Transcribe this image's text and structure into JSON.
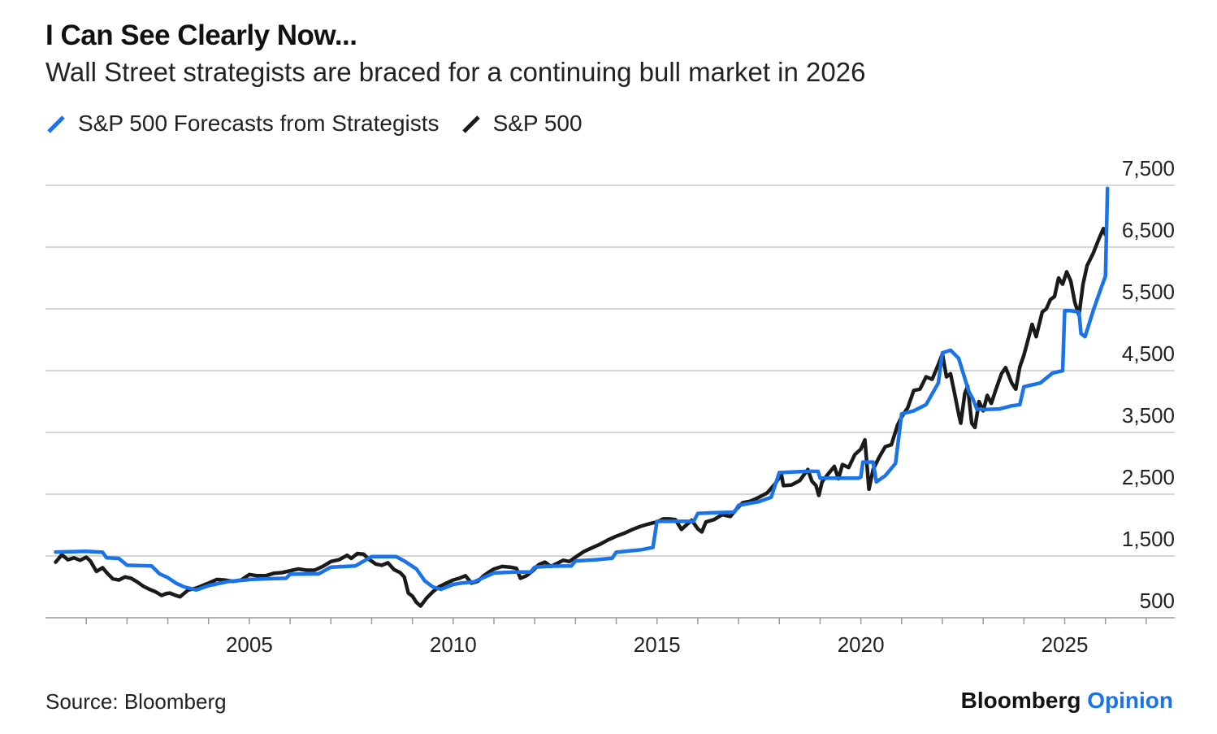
{
  "header": {
    "title": "I Can See Clearly Now...",
    "subtitle": "Wall Street strategists are braced for a continuing bull market in 2026"
  },
  "footer": {
    "source": "Source: Bloomberg",
    "brand_primary": "Bloomberg",
    "brand_secondary": "Opinion"
  },
  "colors": {
    "forecast": "#1a73e8",
    "sp500": "#1a1a1a",
    "grid": "#c8c8c8",
    "brand_accent": "#1a73e8"
  },
  "chart_data": {
    "type": "line",
    "title": "I Can See Clearly Now...",
    "subtitle": "Wall Street strategists are braced for a continuing bull market in 2026",
    "grid": true,
    "legend_position": "top-left",
    "y_axis_position": "right",
    "xlim": [
      2000.0,
      2027.7
    ],
    "ylim": [
      500,
      7500
    ],
    "x_ticks": [
      2005,
      2010,
      2015,
      2020,
      2025
    ],
    "x_tick_labels": [
      "2005",
      "2010",
      "2015",
      "2020",
      "2025"
    ],
    "y_ticks": [
      7500,
      6500,
      5500,
      4500,
      3500,
      2500,
      1500,
      500
    ],
    "y_tick_labels": [
      "7,500",
      "6,500",
      "5,500",
      "4,500",
      "3,500",
      "2,500",
      "1,500",
      "500"
    ],
    "series": [
      {
        "name": "S&P 500 Forecasts from Strategists",
        "color": "#1a73e8",
        "points": [
          [
            2000.25,
            1565
          ],
          [
            2000.6,
            1570
          ],
          [
            2001.0,
            1575
          ],
          [
            2001.4,
            1560
          ],
          [
            2001.5,
            1470
          ],
          [
            2001.8,
            1460
          ],
          [
            2002.0,
            1350
          ],
          [
            2002.6,
            1340
          ],
          [
            2002.8,
            1210
          ],
          [
            2003.0,
            1150
          ],
          [
            2003.2,
            1060
          ],
          [
            2003.4,
            1000
          ],
          [
            2003.7,
            950
          ],
          [
            2004.0,
            1020
          ],
          [
            2004.5,
            1090
          ],
          [
            2004.9,
            1110
          ],
          [
            2005.0,
            1120
          ],
          [
            2005.4,
            1130
          ],
          [
            2005.9,
            1140
          ],
          [
            2006.0,
            1205
          ],
          [
            2006.7,
            1210
          ],
          [
            2007.0,
            1320
          ],
          [
            2007.6,
            1340
          ],
          [
            2008.0,
            1490
          ],
          [
            2008.6,
            1490
          ],
          [
            2008.8,
            1420
          ],
          [
            2009.1,
            1290
          ],
          [
            2009.3,
            1100
          ],
          [
            2009.5,
            1000
          ],
          [
            2009.7,
            960
          ],
          [
            2010.0,
            1040
          ],
          [
            2010.2,
            1060
          ],
          [
            2010.5,
            1080
          ],
          [
            2011.0,
            1225
          ],
          [
            2011.5,
            1240
          ],
          [
            2011.9,
            1240
          ],
          [
            2012.0,
            1320
          ],
          [
            2012.4,
            1335
          ],
          [
            2012.9,
            1340
          ],
          [
            2013.0,
            1420
          ],
          [
            2013.5,
            1440
          ],
          [
            2013.9,
            1465
          ],
          [
            2014.0,
            1560
          ],
          [
            2014.6,
            1600
          ],
          [
            2014.9,
            1640
          ],
          [
            2015.0,
            2060
          ],
          [
            2015.5,
            2060
          ],
          [
            2015.9,
            2060
          ],
          [
            2016.0,
            2190
          ],
          [
            2016.4,
            2200
          ],
          [
            2016.9,
            2210
          ],
          [
            2017.0,
            2320
          ],
          [
            2017.5,
            2380
          ],
          [
            2017.8,
            2450
          ],
          [
            2018.0,
            2850
          ],
          [
            2018.7,
            2870
          ],
          [
            2018.95,
            2870
          ],
          [
            2019.0,
            2760
          ],
          [
            2019.6,
            2760
          ],
          [
            2019.95,
            2760
          ],
          [
            2020.0,
            2780
          ],
          [
            2020.05,
            3020
          ],
          [
            2020.3,
            3020
          ],
          [
            2020.38,
            2700
          ],
          [
            2020.6,
            2800
          ],
          [
            2020.85,
            3000
          ],
          [
            2021.0,
            3800
          ],
          [
            2021.3,
            3850
          ],
          [
            2021.6,
            3950
          ],
          [
            2021.9,
            4300
          ],
          [
            2022.0,
            4790
          ],
          [
            2022.2,
            4830
          ],
          [
            2022.4,
            4700
          ],
          [
            2022.65,
            4160
          ],
          [
            2022.75,
            4040
          ],
          [
            2022.85,
            3870
          ],
          [
            2022.95,
            3880
          ],
          [
            2023.0,
            3870
          ],
          [
            2023.4,
            3880
          ],
          [
            2023.7,
            3930
          ],
          [
            2023.9,
            3950
          ],
          [
            2024.0,
            4240
          ],
          [
            2024.4,
            4300
          ],
          [
            2024.7,
            4460
          ],
          [
            2024.95,
            4500
          ],
          [
            2025.0,
            5470
          ],
          [
            2025.15,
            5470
          ],
          [
            2025.35,
            5450
          ],
          [
            2025.4,
            5100
          ],
          [
            2025.5,
            5050
          ],
          [
            2025.7,
            5470
          ],
          [
            2025.9,
            5850
          ],
          [
            2026.0,
            6030
          ],
          [
            2026.05,
            7450
          ]
        ]
      },
      {
        "name": "S&P 500",
        "color": "#1a1a1a",
        "points": [
          [
            2000.25,
            1400
          ],
          [
            2000.4,
            1520
          ],
          [
            2000.55,
            1440
          ],
          [
            2000.7,
            1470
          ],
          [
            2000.85,
            1430
          ],
          [
            2001.0,
            1480
          ],
          [
            2001.1,
            1420
          ],
          [
            2001.25,
            1250
          ],
          [
            2001.4,
            1310
          ],
          [
            2001.5,
            1230
          ],
          [
            2001.65,
            1130
          ],
          [
            2001.8,
            1110
          ],
          [
            2001.95,
            1160
          ],
          [
            2002.1,
            1140
          ],
          [
            2002.25,
            1080
          ],
          [
            2002.4,
            1010
          ],
          [
            2002.55,
            960
          ],
          [
            2002.7,
            920
          ],
          [
            2002.85,
            860
          ],
          [
            2002.95,
            890
          ],
          [
            2003.05,
            900
          ],
          [
            2003.2,
            860
          ],
          [
            2003.3,
            840
          ],
          [
            2003.5,
            950
          ],
          [
            2003.7,
            980
          ],
          [
            2003.85,
            1020
          ],
          [
            2004.0,
            1060
          ],
          [
            2004.2,
            1120
          ],
          [
            2004.4,
            1110
          ],
          [
            2004.6,
            1090
          ],
          [
            2004.8,
            1110
          ],
          [
            2005.0,
            1200
          ],
          [
            2005.2,
            1180
          ],
          [
            2005.4,
            1180
          ],
          [
            2005.6,
            1220
          ],
          [
            2005.8,
            1230
          ],
          [
            2006.0,
            1260
          ],
          [
            2006.2,
            1290
          ],
          [
            2006.4,
            1270
          ],
          [
            2006.6,
            1270
          ],
          [
            2006.8,
            1330
          ],
          [
            2007.0,
            1410
          ],
          [
            2007.2,
            1440
          ],
          [
            2007.4,
            1510
          ],
          [
            2007.5,
            1460
          ],
          [
            2007.65,
            1540
          ],
          [
            2007.8,
            1530
          ],
          [
            2007.95,
            1440
          ],
          [
            2008.1,
            1370
          ],
          [
            2008.25,
            1350
          ],
          [
            2008.4,
            1390
          ],
          [
            2008.55,
            1280
          ],
          [
            2008.7,
            1230
          ],
          [
            2008.8,
            1160
          ],
          [
            2008.9,
            900
          ],
          [
            2009.0,
            850
          ],
          [
            2009.1,
            750
          ],
          [
            2009.2,
            690
          ],
          [
            2009.35,
            820
          ],
          [
            2009.5,
            920
          ],
          [
            2009.65,
            1000
          ],
          [
            2009.8,
            1050
          ],
          [
            2010.0,
            1110
          ],
          [
            2010.15,
            1140
          ],
          [
            2010.3,
            1180
          ],
          [
            2010.45,
            1060
          ],
          [
            2010.6,
            1090
          ],
          [
            2010.75,
            1180
          ],
          [
            2010.9,
            1250
          ],
          [
            2011.0,
            1290
          ],
          [
            2011.2,
            1330
          ],
          [
            2011.4,
            1320
          ],
          [
            2011.55,
            1300
          ],
          [
            2011.65,
            1140
          ],
          [
            2011.8,
            1180
          ],
          [
            2011.95,
            1260
          ],
          [
            2012.1,
            1360
          ],
          [
            2012.25,
            1400
          ],
          [
            2012.4,
            1330
          ],
          [
            2012.55,
            1380
          ],
          [
            2012.7,
            1430
          ],
          [
            2012.85,
            1410
          ],
          [
            2013.0,
            1480
          ],
          [
            2013.2,
            1570
          ],
          [
            2013.4,
            1630
          ],
          [
            2013.6,
            1690
          ],
          [
            2013.8,
            1760
          ],
          [
            2014.0,
            1820
          ],
          [
            2014.2,
            1870
          ],
          [
            2014.4,
            1930
          ],
          [
            2014.6,
            1980
          ],
          [
            2014.8,
            2020
          ],
          [
            2015.0,
            2050
          ],
          [
            2015.15,
            2100
          ],
          [
            2015.3,
            2100
          ],
          [
            2015.45,
            2090
          ],
          [
            2015.6,
            1930
          ],
          [
            2015.7,
            1990
          ],
          [
            2015.85,
            2080
          ],
          [
            2016.0,
            1940
          ],
          [
            2016.1,
            1890
          ],
          [
            2016.2,
            2050
          ],
          [
            2016.4,
            2090
          ],
          [
            2016.6,
            2170
          ],
          [
            2016.8,
            2140
          ],
          [
            2016.95,
            2260
          ],
          [
            2017.1,
            2360
          ],
          [
            2017.3,
            2390
          ],
          [
            2017.5,
            2450
          ],
          [
            2017.7,
            2520
          ],
          [
            2017.9,
            2670
          ],
          [
            2018.05,
            2820
          ],
          [
            2018.1,
            2640
          ],
          [
            2018.3,
            2650
          ],
          [
            2018.5,
            2720
          ],
          [
            2018.7,
            2900
          ],
          [
            2018.8,
            2710
          ],
          [
            2018.9,
            2640
          ],
          [
            2018.97,
            2480
          ],
          [
            2019.05,
            2700
          ],
          [
            2019.2,
            2830
          ],
          [
            2019.35,
            2950
          ],
          [
            2019.45,
            2750
          ],
          [
            2019.55,
            2980
          ],
          [
            2019.7,
            2930
          ],
          [
            2019.85,
            3140
          ],
          [
            2020.0,
            3230
          ],
          [
            2020.1,
            3380
          ],
          [
            2020.2,
            2580
          ],
          [
            2020.3,
            2900
          ],
          [
            2020.45,
            3100
          ],
          [
            2020.6,
            3270
          ],
          [
            2020.75,
            3300
          ],
          [
            2020.9,
            3620
          ],
          [
            2021.0,
            3750
          ],
          [
            2021.15,
            3900
          ],
          [
            2021.3,
            4180
          ],
          [
            2021.45,
            4200
          ],
          [
            2021.6,
            4400
          ],
          [
            2021.75,
            4360
          ],
          [
            2021.9,
            4600
          ],
          [
            2022.0,
            4770
          ],
          [
            2022.1,
            4400
          ],
          [
            2022.2,
            4450
          ],
          [
            2022.3,
            4130
          ],
          [
            2022.4,
            3800
          ],
          [
            2022.45,
            3650
          ],
          [
            2022.55,
            4130
          ],
          [
            2022.62,
            4250
          ],
          [
            2022.72,
            3650
          ],
          [
            2022.8,
            3580
          ],
          [
            2022.9,
            4000
          ],
          [
            2023.0,
            3850
          ],
          [
            2023.1,
            4100
          ],
          [
            2023.2,
            3970
          ],
          [
            2023.3,
            4170
          ],
          [
            2023.45,
            4450
          ],
          [
            2023.55,
            4550
          ],
          [
            2023.7,
            4300
          ],
          [
            2023.8,
            4200
          ],
          [
            2023.9,
            4560
          ],
          [
            2024.0,
            4750
          ],
          [
            2024.1,
            5000
          ],
          [
            2024.2,
            5250
          ],
          [
            2024.3,
            5050
          ],
          [
            2024.45,
            5450
          ],
          [
            2024.55,
            5500
          ],
          [
            2024.65,
            5650
          ],
          [
            2024.75,
            5700
          ],
          [
            2024.85,
            6000
          ],
          [
            2024.95,
            5900
          ],
          [
            2025.05,
            6100
          ],
          [
            2025.15,
            5950
          ],
          [
            2025.25,
            5600
          ],
          [
            2025.35,
            5400
          ],
          [
            2025.45,
            5900
          ],
          [
            2025.55,
            6200
          ],
          [
            2025.7,
            6400
          ],
          [
            2025.85,
            6650
          ],
          [
            2025.95,
            6800
          ],
          [
            2026.0,
            6700
          ]
        ]
      }
    ]
  }
}
